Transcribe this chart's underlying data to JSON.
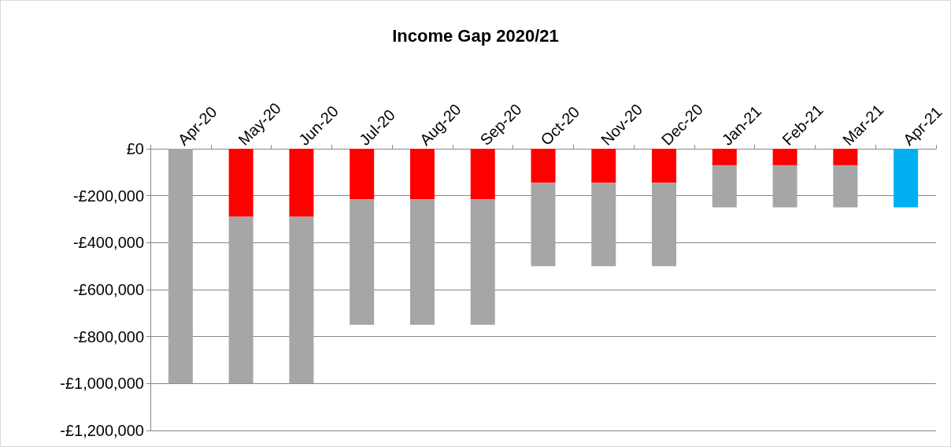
{
  "chart_data": {
    "type": "bar",
    "title": "Income Gap 2020/21",
    "stacked": true,
    "categories": [
      "Apr-20",
      "May-20",
      "Jun-20",
      "Jul-20",
      "Aug-20",
      "Sep-20",
      "Oct-20",
      "Nov-20",
      "Dec-20",
      "Jan-21",
      "Feb-21",
      "Mar-21",
      "Apr-21"
    ],
    "series": [
      {
        "color": "#ff0000",
        "values": [
          0,
          -290000,
          -290000,
          -215000,
          -215000,
          -215000,
          -145000,
          -145000,
          -145000,
          -70000,
          -70000,
          -70000,
          null
        ]
      },
      {
        "color": "#a6a6a6",
        "values": [
          -1000000,
          -710000,
          -710000,
          -535000,
          -535000,
          -535000,
          -355000,
          -355000,
          -355000,
          -180000,
          -180000,
          -180000,
          null
        ]
      },
      {
        "color": "#00b0f0",
        "values": [
          null,
          null,
          null,
          null,
          null,
          null,
          null,
          null,
          null,
          null,
          null,
          null,
          -250000
        ]
      }
    ],
    "ylim": [
      -1200000,
      0
    ],
    "yticks": [
      {
        "value": 0,
        "label": "£0"
      },
      {
        "value": -200000,
        "label": "-£200,000"
      },
      {
        "value": -400000,
        "label": "-£400,000"
      },
      {
        "value": -600000,
        "label": "-£600,000"
      },
      {
        "value": -800000,
        "label": "-£800,000"
      },
      {
        "value": -1000000,
        "label": "-£1,000,000"
      },
      {
        "value": -1200000,
        "label": "-£1,200,000"
      }
    ],
    "grid": "y"
  }
}
